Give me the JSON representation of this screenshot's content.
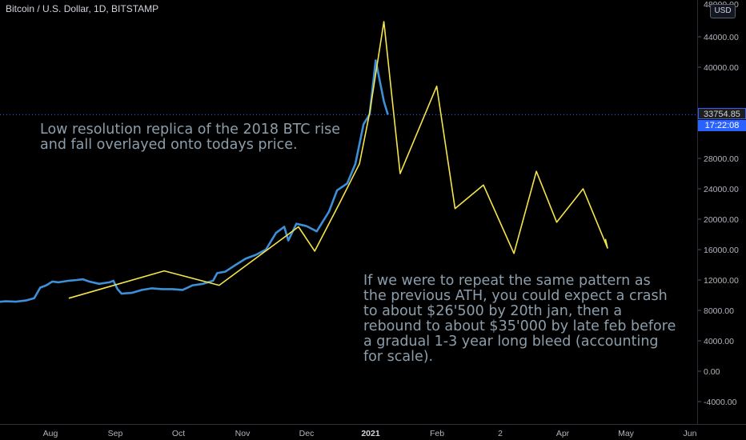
{
  "header": {
    "symbol_title": "Bitcoin / U.S. Dollar, 1D, BITSTAMP",
    "currency_badge": "USD"
  },
  "price_scale": {
    "current_price": "33754.85",
    "countdown": "17:22:08"
  },
  "annotations": {
    "note_top": "Low resolution replica of the 2018 BTC rise\nand fall overlayed onto todays price.",
    "note_bottom": "If we were to repeat the same pattern as\nthe previous ATH, you could expect a crash\nto about $26'500 by 20th jan, then a\nrebound to about $35'000 by late feb before\na gradual 1-3 year long bleed (accounting\nfor scale)."
  },
  "colors": {
    "background": "#000000",
    "price_line": "#3d8fd8",
    "projection_line": "#f5e44a",
    "axis_text": "#b2b5be",
    "current_price_line": "#2962ff"
  },
  "chart_data": {
    "type": "line",
    "title": "Bitcoin / U.S. Dollar, 1D, BITSTAMP",
    "xlabel": "",
    "ylabel": "",
    "x_ticks": [
      "Aug",
      "Sep",
      "Oct",
      "Nov",
      "Dec",
      "2021",
      "Feb",
      "2",
      "Apr",
      "May",
      "Jun"
    ],
    "y_ticks": [
      -4000,
      0,
      4000,
      8000,
      12000,
      16000,
      20000,
      24000,
      28000,
      40000,
      44000
    ],
    "y_tick_labels": [
      "-4000.00",
      "0.00",
      "4000.00",
      "8000.00",
      "12000.00",
      "16000.00",
      "20000.00",
      "24000.00",
      "28000.00",
      "40000.00",
      "44000.00"
    ],
    "y_top_partial_label": "48000.00",
    "ylim": [
      -6000,
      48000
    ],
    "grid": false,
    "series": [
      {
        "style": "price",
        "x": [
          "2020-07-01",
          "2020-07-05",
          "2020-07-10",
          "2020-07-15",
          "2020-07-20",
          "2020-07-24",
          "2020-07-27",
          "2020-07-30",
          "2020-08-02",
          "2020-08-05",
          "2020-08-10",
          "2020-08-14",
          "2020-08-17",
          "2020-08-20",
          "2020-08-25",
          "2020-08-30",
          "2020-09-01",
          "2020-09-03",
          "2020-09-05",
          "2020-09-10",
          "2020-09-15",
          "2020-09-20",
          "2020-09-25",
          "2020-09-30",
          "2020-10-05",
          "2020-10-10",
          "2020-10-15",
          "2020-10-20",
          "2020-10-22",
          "2020-10-26",
          "2020-10-30",
          "2020-11-05",
          "2020-11-10",
          "2020-11-15",
          "2020-11-20",
          "2020-11-24",
          "2020-11-26",
          "2020-11-30",
          "2020-12-05",
          "2020-12-10",
          "2020-12-16",
          "2020-12-20",
          "2020-12-25",
          "2020-12-29",
          "2021-01-02",
          "2021-01-05",
          "2021-01-08",
          "2021-01-10",
          "2021-01-12",
          "2021-01-14"
        ],
        "y": [
          9200,
          9100,
          9200,
          9150,
          9300,
          9600,
          11000,
          11300,
          11800,
          11700,
          11900,
          12000,
          12100,
          11800,
          11500,
          11700,
          11900,
          10800,
          10200,
          10300,
          10700,
          10900,
          10800,
          10800,
          10700,
          11300,
          11500,
          11900,
          12900,
          13100,
          13800,
          14800,
          15300,
          16000,
          18200,
          19000,
          17200,
          19400,
          19100,
          18400,
          21000,
          23800,
          24700,
          27300,
          32500,
          33800,
          40900,
          38200,
          35500,
          33754
        ]
      },
      {
        "style": "projection",
        "x": [
          "2020-08-10",
          "2020-09-26",
          "2020-10-23",
          "2020-12-01",
          "2020-12-09",
          "2020-12-21",
          "2020-12-31",
          "2021-01-05",
          "2021-01-12",
          "2021-01-20",
          "2021-02-07",
          "2021-02-16",
          "2021-03-02",
          "2021-03-17",
          "2021-03-28",
          "2021-04-07",
          "2021-04-20",
          "2021-05-02",
          "2021-05-01"
        ],
        "y": [
          9600,
          13200,
          11300,
          19000,
          15800,
          22000,
          27300,
          34000,
          46000,
          26000,
          37500,
          21400,
          24500,
          15500,
          26300,
          19600,
          24000,
          16200,
          17400
        ]
      }
    ]
  }
}
